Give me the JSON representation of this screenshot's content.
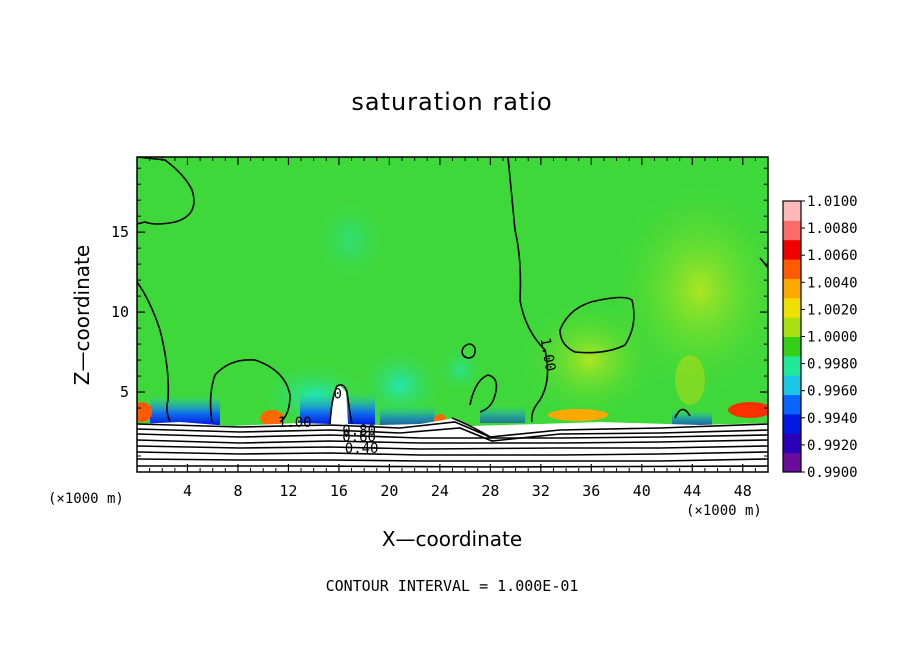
{
  "chart_data": {
    "type": "heatmap",
    "title": "saturation ratio",
    "xlabel": "X—coordinate",
    "ylabel": "Z—coordinate",
    "x_unit": "(×1000 m)",
    "x_unit_right": "(×1000 m)",
    "xlim": [
      0,
      50
    ],
    "ylim": [
      0,
      19.7
    ],
    "x_ticks": [
      4,
      8,
      12,
      16,
      20,
      24,
      28,
      32,
      36,
      40,
      44,
      48
    ],
    "y_ticks": [
      5,
      10,
      15
    ],
    "colorbar": {
      "range": [
        0.99,
        1.01
      ],
      "ticks": [
        "1.0100",
        "1.0080",
        "1.0060",
        "1.0040",
        "1.0020",
        "1.0000",
        "0.9980",
        "0.9960",
        "0.9940",
        "0.9920",
        "0.9900"
      ],
      "colors": [
        "#6a0d9e",
        "#2a00b8",
        "#0018e0",
        "#0a64ff",
        "#17c7e4",
        "#1ee89a",
        "#34cf17",
        "#a8e010",
        "#f0e000",
        "#ffa800",
        "#ff5a00",
        "#f00000",
        "#ff6a6a",
        "#ffb8b8"
      ]
    },
    "contour_labels": [
      {
        "text": "1.00",
        "x": 12.5,
        "z": 2.8
      },
      {
        "text": "0.80",
        "x": 17.6,
        "z": 2.3
      },
      {
        "text": "0.60",
        "x": 17.6,
        "z": 1.9
      },
      {
        "text": "0.40",
        "x": 17.8,
        "z": 1.2
      },
      {
        "text": "1.00",
        "x": 32.2,
        "z": 7.3
      },
      {
        "text": "0",
        "x": 15.9,
        "z": 4.6
      }
    ],
    "contour_interval_text": "CONTOUR INTERVAL =  1.000E-01",
    "grid": false,
    "legend_position": "right"
  }
}
